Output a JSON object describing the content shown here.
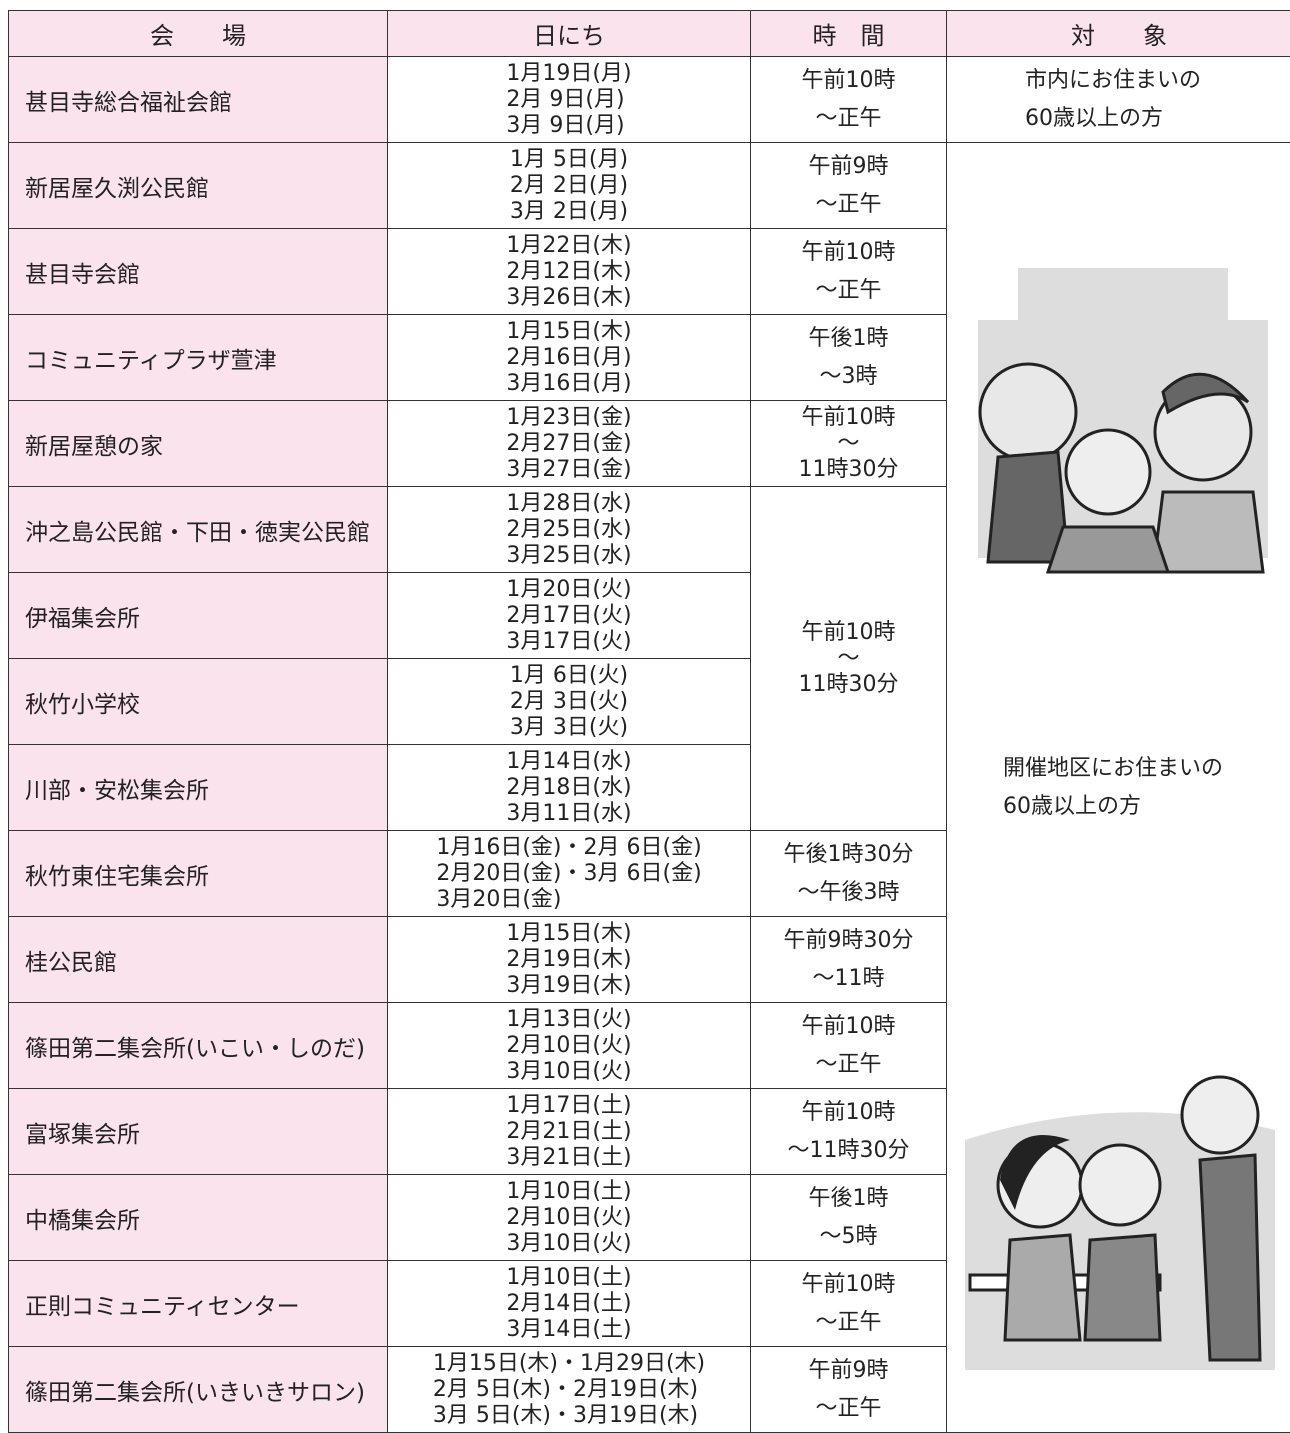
{
  "table": {
    "header": [
      "会　　場",
      "日にち",
      "時　間",
      "対　　象"
    ],
    "rows": [
      {
        "venue": "甚目寺総合福祉会館",
        "dates": [
          "1月19日(月)",
          "2月 9日(月)",
          "3月 9日(月)"
        ]
      },
      {
        "venue": "新居屋久渕公民館",
        "dates": [
          "1月 5日(月)",
          "2月 2日(月)",
          "3月 2日(月)"
        ]
      },
      {
        "venue": "甚目寺会館",
        "dates": [
          "1月22日(木)",
          "2月12日(木)",
          "3月26日(木)"
        ]
      },
      {
        "venue": "コミュニティプラザ萱津",
        "dates": [
          "1月15日(木)",
          "2月16日(月)",
          "3月16日(月)"
        ]
      },
      {
        "venue": "新居屋憩の家",
        "dates": [
          "1月23日(金)",
          "2月27日(金)",
          "3月27日(金)"
        ]
      },
      {
        "venue": "沖之島公民館・下田・徳実公民館",
        "dates": [
          "1月28日(水)",
          "2月25日(水)",
          "3月25日(水)"
        ]
      },
      {
        "venue": "伊福集会所",
        "dates": [
          "1月20日(火)",
          "2月17日(火)",
          "3月17日(火)"
        ]
      },
      {
        "venue": "秋竹小学校",
        "dates": [
          "1月 6日(火)",
          "2月 3日(火)",
          "3月 3日(火)"
        ]
      },
      {
        "venue": "川部・安松集会所",
        "dates": [
          "1月14日(水)",
          "2月18日(水)",
          "3月11日(水)"
        ]
      },
      {
        "venue": "秋竹東住宅集会所",
        "dates": [
          "1月16日(金)・2月 6日(金)",
          "2月20日(金)・3月 6日(金)",
          "3月20日(金)"
        ]
      },
      {
        "venue": "桂公民館",
        "dates": [
          "1月15日(木)",
          "2月19日(木)",
          "3月19日(木)"
        ]
      },
      {
        "venue": "篠田第二集会所(いこい・しのだ)",
        "dates": [
          "1月13日(火)",
          "2月10日(火)",
          "3月10日(火)"
        ]
      },
      {
        "venue": "富塚集会所",
        "dates": [
          "1月17日(土)",
          "2月21日(土)",
          "3月21日(土)"
        ]
      },
      {
        "venue": "中橋集会所",
        "dates": [
          "1月10日(土)",
          "2月10日(火)",
          "3月10日(火)"
        ]
      },
      {
        "venue": "正則コミュニティセンター",
        "dates": [
          "1月10日(土)",
          "2月14日(土)",
          "3月14日(土)"
        ]
      },
      {
        "venue": "篠田第二集会所(いきいきサロン)",
        "dates": [
          "1月15日(木)・1月29日(木)",
          "2月 5日(木)・2月19日(木)",
          "3月 5日(木)・3月19日(木)"
        ]
      }
    ],
    "times": [
      [
        "午前10時",
        "～正午"
      ],
      [
        "午前9時",
        "～正午"
      ],
      [
        "午前10時",
        "～正午"
      ],
      [
        "午後1時",
        "～3時"
      ],
      [
        "午前10時",
        "～",
        "11時30分"
      ],
      [
        "午前10時",
        "～",
        "11時30分"
      ],
      [
        "午後1時30分",
        "～午後3時"
      ],
      [
        "午前9時30分",
        "～11時"
      ],
      [
        "午前10時",
        "～正午"
      ],
      [
        "午前10時",
        "～11時30分"
      ],
      [
        "午後1時",
        "～5時"
      ],
      [
        "午前10時",
        "～正午"
      ],
      [
        "午前9時",
        "～正午"
      ]
    ],
    "targets": [
      [
        "市内にお住まいの",
        "60歳以上の方"
      ],
      [
        "開催地区にお住まいの",
        "60歳以上の方"
      ]
    ]
  }
}
